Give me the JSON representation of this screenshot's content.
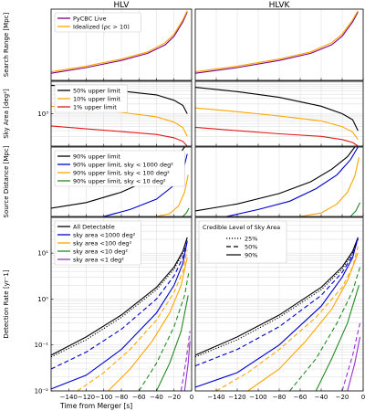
{
  "columns": [
    "HLV",
    "HLVK"
  ],
  "xlabel": "Time from Merger [s]",
  "xticks": [
    -140,
    -120,
    -100,
    -80,
    -60,
    -40,
    -20,
    0
  ],
  "xlim": [
    -160,
    0
  ],
  "chart_data": [
    {
      "type": "line",
      "id": "range",
      "ylabel": "Search Range [Mpc]",
      "scale": "linear",
      "ylim": [
        0,
        1
      ],
      "yticks": [],
      "legend_position": "top-left",
      "series": [
        {
          "name": "PyCBC Live",
          "color": "#800080",
          "dash": "solid",
          "hlv": {
            "x": [
              -160,
              -120,
              -80,
              -50,
              -30,
              -20,
              -10,
              -5
            ],
            "y": [
              0.1,
              0.18,
              0.28,
              0.38,
              0.5,
              0.62,
              0.82,
              0.96
            ]
          },
          "hlvk": {
            "x": [
              -160,
              -120,
              -80,
              -50,
              -30,
              -20,
              -10,
              -5
            ],
            "y": [
              0.1,
              0.18,
              0.28,
              0.38,
              0.5,
              0.62,
              0.82,
              0.96
            ]
          }
        },
        {
          "name": "Idealized (ρc > 10)",
          "color": "#ffa500",
          "dash": "solid",
          "hlv": {
            "x": [
              -160,
              -120,
              -80,
              -50,
              -30,
              -20,
              -10,
              -5
            ],
            "y": [
              0.12,
              0.2,
              0.3,
              0.4,
              0.53,
              0.65,
              0.85,
              0.98
            ]
          },
          "hlvk": {
            "x": [
              -160,
              -120,
              -80,
              -50,
              -30,
              -20,
              -10,
              -5
            ],
            "y": [
              0.12,
              0.2,
              0.3,
              0.4,
              0.53,
              0.65,
              0.85,
              0.98
            ]
          }
        }
      ]
    },
    {
      "type": "line",
      "id": "skyarea",
      "ylabel": "Sky Area [deg²]",
      "scale": "log",
      "ylim": [
        100,
        10000
      ],
      "yticks": [
        {
          "v": 1000,
          "label": "10³"
        }
      ],
      "legend_position": "top-left",
      "series": [
        {
          "name": "50% upper limit",
          "color": "#000000",
          "dash": "solid",
          "hlv": {
            "x": [
              -160,
              -120,
              -80,
              -40,
              -20,
              -10,
              -5
            ],
            "y": [
              7500,
              6500,
              5000,
              3800,
              2600,
              1800,
              1000
            ]
          },
          "hlvk": {
            "x": [
              -160,
              -120,
              -80,
              -40,
              -20,
              -10,
              -5
            ],
            "y": [
              6500,
              4800,
              3200,
              1700,
              1000,
              650,
              300
            ]
          }
        },
        {
          "name": "10% upper limit",
          "color": "#ffa500",
          "dash": "solid",
          "hlv": {
            "x": [
              -160,
              -120,
              -80,
              -40,
              -20,
              -10,
              -5
            ],
            "y": [
              1700,
              1400,
              1100,
              800,
              550,
              370,
              200
            ]
          },
          "hlvk": {
            "x": [
              -160,
              -120,
              -80,
              -40,
              -20,
              -10,
              -5
            ],
            "y": [
              1500,
              1150,
              850,
              600,
              400,
              270,
              160
            ]
          }
        },
        {
          "name": "1% upper limit",
          "color": "#e31a1c",
          "dash": "solid",
          "hlv": {
            "x": [
              -160,
              -120,
              -80,
              -40,
              -20,
              -10,
              -5
            ],
            "y": [
              420,
              340,
              280,
              230,
              180,
              140,
              100
            ]
          },
          "hlvk": {
            "x": [
              -160,
              -120,
              -80,
              -40,
              -20,
              -10,
              -5
            ],
            "y": [
              380,
              300,
              240,
              200,
              160,
              130,
              100
            ]
          }
        }
      ]
    },
    {
      "type": "line",
      "id": "distance",
      "ylabel": "Source Distance [Mpc]",
      "scale": "linear",
      "ylim": [
        0,
        1
      ],
      "yticks": [],
      "legend_position": "top-left",
      "series": [
        {
          "name": "90% upper limit",
          "color": "#000000",
          "dash": "solid",
          "hlv": {
            "x": [
              -160,
              -120,
              -80,
              -50,
              -30,
              -15,
              -8
            ],
            "y": [
              0.12,
              0.2,
              0.35,
              0.52,
              0.7,
              0.88,
              1.0
            ]
          },
          "hlvk": {
            "x": [
              -160,
              -120,
              -80,
              -50,
              -30,
              -15,
              -8
            ],
            "y": [
              0.08,
              0.18,
              0.33,
              0.5,
              0.68,
              0.86,
              1.0
            ]
          }
        },
        {
          "name": "90% upper limit, sky < 1000 deg²",
          "color": "#0000cd",
          "dash": "solid",
          "hlv": {
            "x": [
              -100,
              -70,
              -40,
              -20,
              -10,
              -5
            ],
            "y": [
              0.0,
              0.1,
              0.25,
              0.45,
              0.65,
              0.9
            ]
          },
          "hlvk": {
            "x": [
              -130,
              -100,
              -70,
              -45,
              -25,
              -12,
              -5
            ],
            "y": [
              0.0,
              0.1,
              0.22,
              0.4,
              0.6,
              0.82,
              1.0
            ]
          }
        },
        {
          "name": "90% upper limit, sky < 100 deg²",
          "color": "#ffa500",
          "dash": "solid",
          "hlv": {
            "x": [
              -40,
              -25,
              -15,
              -8,
              -4
            ],
            "y": [
              0.0,
              0.04,
              0.15,
              0.35,
              0.6
            ]
          },
          "hlvk": {
            "x": [
              -60,
              -40,
              -25,
              -15,
              -8,
              -4
            ],
            "y": [
              0.0,
              0.05,
              0.18,
              0.35,
              0.58,
              0.85
            ]
          }
        },
        {
          "name": "90% upper limit, sky < 10 deg²",
          "color": "#228b22",
          "dash": "solid",
          "hlv": {
            "x": [
              -10,
              -6,
              -3
            ],
            "y": [
              0.0,
              0.05,
              0.12
            ]
          },
          "hlvk": {
            "x": [
              -12,
              -7,
              -3
            ],
            "y": [
              0.0,
              0.08,
              0.2
            ]
          }
        }
      ]
    },
    {
      "type": "line",
      "id": "rate",
      "ylabel": "Detection Rate [yr⁻1]",
      "scale": "log",
      "ylim": [
        0.01,
        60
      ],
      "yticks": [
        {
          "v": 0.01,
          "label": "10⁻²"
        },
        {
          "v": 0.1,
          "label": "10⁻¹"
        },
        {
          "v": 1,
          "label": "10⁰"
        },
        {
          "v": 10,
          "label": "10¹"
        }
      ],
      "legend_position": "top-left",
      "legend2_title": "Credible Level of Sky Area",
      "legend2": [
        {
          "label": "25%",
          "dash": "dotted"
        },
        {
          "label": "50%",
          "dash": "dashed"
        },
        {
          "label": "90%",
          "dash": "solid"
        }
      ],
      "series": [
        {
          "name": "All Detectable",
          "color": "#000000",
          "dash": "solid",
          "hlv": {
            "x": [
              -160,
              -120,
              -80,
              -40,
              -20,
              -10,
              -5
            ],
            "y": [
              0.06,
              0.15,
              0.45,
              1.8,
              5,
              11,
              22
            ]
          },
          "hlvk": {
            "x": [
              -160,
              -120,
              -80,
              -40,
              -20,
              -10,
              -5
            ],
            "y": [
              0.06,
              0.15,
              0.45,
              1.8,
              5,
              11,
              22
            ]
          }
        },
        {
          "name": "All Detectable 25%",
          "color": "#000000",
          "dash": "dotted",
          "hlv": {
            "x": [
              -160,
              -120,
              -80,
              -40,
              -20,
              -10,
              -5
            ],
            "y": [
              0.055,
              0.13,
              0.4,
              1.6,
              4.5,
              10,
              20
            ]
          },
          "hlvk": {
            "x": [
              -160,
              -120,
              -80,
              -40,
              -20,
              -10,
              -5
            ],
            "y": [
              0.055,
              0.13,
              0.4,
              1.6,
              4.5,
              10,
              20
            ]
          }
        },
        {
          "name": "sky area <1000 deg²",
          "color": "#0000cd",
          "dash": "solid",
          "hlv": {
            "x": [
              -160,
              -120,
              -80,
              -40,
              -20,
              -10,
              -5
            ],
            "y": [
              0.011,
              0.022,
              0.08,
              0.5,
              2,
              6,
              18
            ]
          },
          "hlvk": {
            "x": [
              -160,
              -120,
              -80,
              -40,
              -20,
              -10,
              -5
            ],
            "y": [
              0.012,
              0.025,
              0.1,
              0.7,
              3,
              8,
              22
            ]
          }
        },
        {
          "name": "sky area <1000 deg² 50%",
          "color": "#0000cd",
          "dash": "dashed",
          "hlv": {
            "x": [
              -160,
              -120,
              -80,
              -40,
              -20,
              -10,
              -5
            ],
            "y": [
              0.03,
              0.07,
              0.22,
              1.0,
              3.2,
              8,
              18
            ]
          },
          "hlvk": {
            "x": [
              -160,
              -120,
              -80,
              -40,
              -20,
              -10,
              -5
            ],
            "y": [
              0.035,
              0.08,
              0.25,
              1.2,
              3.8,
              9,
              20
            ]
          }
        },
        {
          "name": "sky area <100 deg²",
          "color": "#ffa500",
          "dash": "solid",
          "hlv": {
            "x": [
              -95,
              -70,
              -45,
              -25,
              -12,
              -5
            ],
            "y": [
              0.01,
              0.03,
              0.12,
              0.5,
              2,
              8
            ]
          },
          "hlvk": {
            "x": [
              -110,
              -80,
              -55,
              -30,
              -15,
              -5
            ],
            "y": [
              0.01,
              0.03,
              0.12,
              0.6,
              2.5,
              10
            ]
          }
        },
        {
          "name": "sky area <100 deg² 50%",
          "color": "#ffa500",
          "dash": "dashed",
          "hlv": {
            "x": [
              -130,
              -100,
              -70,
              -40,
              -20,
              -10,
              -5
            ],
            "y": [
              0.01,
              0.025,
              0.08,
              0.35,
              1.4,
              4,
              12
            ]
          },
          "hlvk": {
            "x": [
              -140,
              -110,
              -80,
              -45,
              -20,
              -10,
              -5
            ],
            "y": [
              0.01,
              0.025,
              0.08,
              0.4,
              1.8,
              5,
              14
            ]
          }
        },
        {
          "name": "sky area <10 deg²",
          "color": "#228b22",
          "dash": "solid",
          "hlv": {
            "x": [
              -40,
              -25,
              -12,
              -4
            ],
            "y": [
              0.01,
              0.04,
              0.2,
              1.2
            ]
          },
          "hlvk": {
            "x": [
              -45,
              -30,
              -15,
              -4
            ],
            "y": [
              0.01,
              0.05,
              0.3,
              2
            ]
          }
        },
        {
          "name": "sky area <10 deg² 50%",
          "color": "#228b22",
          "dash": "dashed",
          "hlv": {
            "x": [
              -60,
              -40,
              -20,
              -8,
              -3
            ],
            "y": [
              0.01,
              0.04,
              0.25,
              1.2,
              4
            ]
          },
          "hlvk": {
            "x": [
              -70,
              -45,
              -25,
              -10,
              -3
            ],
            "y": [
              0.01,
              0.05,
              0.3,
              1.5,
              5
            ]
          }
        },
        {
          "name": "sky area <1 deg²",
          "color": "#9932cc",
          "dash": "solid",
          "hlv": {
            "x": [
              -8,
              -4,
              -2
            ],
            "y": [
              0.01,
              0.04,
              0.12
            ]
          },
          "hlvk": {
            "x": [
              -15,
              -8,
              -3
            ],
            "y": [
              0.01,
              0.04,
              0.15
            ]
          }
        },
        {
          "name": "sky area <1 deg² 50%",
          "color": "#9932cc",
          "dash": "dashed",
          "hlv": {
            "x": [
              -12,
              -6,
              -2
            ],
            "y": [
              0.01,
              0.05,
              0.2
            ]
          },
          "hlvk": {
            "x": [
              -20,
              -10,
              -3
            ],
            "y": [
              0.01,
              0.06,
              0.3
            ]
          }
        }
      ]
    }
  ]
}
